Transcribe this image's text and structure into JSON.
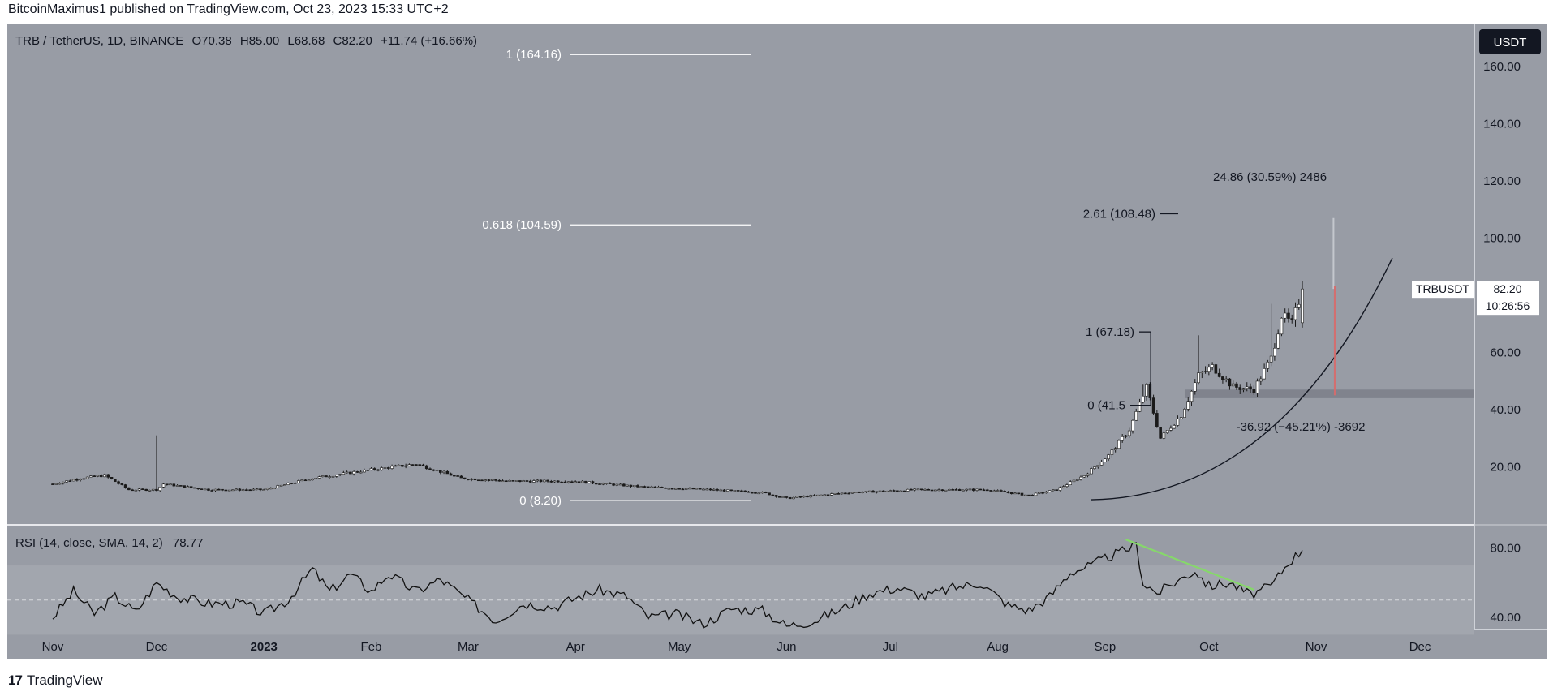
{
  "header": {
    "published_text": "BitcoinMaximus1 published on TradingView.com, Oct 23, 2023 15:33 UTC+2"
  },
  "footer": {
    "logo_glyph": "17",
    "brand": "TradingView"
  },
  "colors": {
    "pane_bg": "#989ca5",
    "candle": "#1a1a1a",
    "rsi_line": "#111111",
    "divergence": "#86d86a",
    "highlight_line": "#d96b6b",
    "fib_line": "#ffffff",
    "zone": "#7b7f88"
  },
  "chart_data": {
    "type": "candlestick",
    "symbol_line": {
      "symbol": "TRB / TetherUS, 1D, BINANCE",
      "open_label": "O",
      "open": "70.38",
      "high_label": "H",
      "high": "85.00",
      "low_label": "L",
      "low": "68.68",
      "close_label": "C",
      "close": "82.20",
      "change": "+11.74 (+16.66%)"
    },
    "currency_badge": "USDT",
    "price_axis": {
      "range": [
        0,
        175
      ],
      "ticks": [
        "160.00",
        "140.00",
        "120.00",
        "100.00",
        "80.00",
        "60.00",
        "40.00",
        "20.00"
      ]
    },
    "time_axis": {
      "labels": [
        "Nov",
        "Dec",
        "2023",
        "Feb",
        "Mar",
        "Apr",
        "May",
        "Jun",
        "Jul",
        "Aug",
        "Sep",
        "Oct",
        "Nov",
        "Dec"
      ],
      "label_day_index": [
        0,
        30,
        61,
        92,
        120,
        151,
        181,
        212,
        242,
        273,
        304,
        334,
        365,
        395
      ],
      "first_day": "2022-11-01"
    },
    "price_series": {
      "name": "TRB/USDT daily close (approx.)",
      "anchors": [
        [
          0,
          14
        ],
        [
          8,
          16
        ],
        [
          15,
          17
        ],
        [
          22,
          12
        ],
        [
          30,
          12
        ],
        [
          32,
          14
        ],
        [
          45,
          12
        ],
        [
          61,
          12
        ],
        [
          75,
          16
        ],
        [
          92,
          19
        ],
        [
          105,
          21
        ],
        [
          118,
          16
        ],
        [
          132,
          15
        ],
        [
          150,
          15
        ],
        [
          170,
          13
        ],
        [
          190,
          12
        ],
        [
          205,
          11
        ],
        [
          212,
          9
        ],
        [
          230,
          11
        ],
        [
          250,
          12
        ],
        [
          270,
          12
        ],
        [
          282,
          10
        ],
        [
          290,
          12
        ],
        [
          298,
          17
        ],
        [
          305,
          24
        ],
        [
          311,
          33
        ],
        [
          316,
          48
        ],
        [
          320,
          30
        ],
        [
          326,
          38
        ],
        [
          331,
          52
        ],
        [
          335,
          55
        ],
        [
          341,
          48
        ],
        [
          347,
          47
        ],
        [
          352,
          58
        ],
        [
          355,
          73
        ],
        [
          358,
          70
        ],
        [
          361,
          82
        ]
      ],
      "spikes": [
        [
          30,
          31
        ],
        [
          315,
          49
        ],
        [
          331,
          66
        ],
        [
          352,
          77
        ]
      ]
    },
    "fib_levels_left": [
      {
        "label": "1 (164.16)",
        "value": 164.16
      },
      {
        "label": "0.618 (104.59)",
        "value": 104.59
      },
      {
        "label": "0 (8.20)",
        "value": 8.2
      }
    ],
    "fib_levels_right": [
      {
        "label": "2.61 (108.48)",
        "value": 108.48
      },
      {
        "label": "1 (67.18)",
        "value": 67.18
      },
      {
        "label": "0 (41.5",
        "value": 41.5
      }
    ],
    "support_zone": {
      "low": 44,
      "high": 47
    },
    "ascending_curve": {
      "from": [
        300,
        8.5
      ],
      "to": [
        387,
        93
      ]
    },
    "measure_up": {
      "text": "24.86 (30.59%) 2486",
      "from_value": 82.2,
      "to_value": 107
    },
    "measure_down": {
      "text": "-36.92 (−45.21%) -3692",
      "from_value": 82.2,
      "to_value": 45
    },
    "last_price_badge": {
      "symbol": "TRBUSDT",
      "price": "82.20",
      "countdown": "10:26:56",
      "value": 82.2
    },
    "rsi": {
      "title": "RSI (14, close, SMA, 14, 2)",
      "value_text": "78.77",
      "value": 78.77,
      "range": [
        33,
        93
      ],
      "band": [
        30,
        70
      ],
      "midline": 50,
      "ticks": [
        "80.00",
        "40.00"
      ],
      "anchors": [
        [
          0,
          40
        ],
        [
          6,
          55
        ],
        [
          12,
          42
        ],
        [
          18,
          52
        ],
        [
          24,
          43
        ],
        [
          30,
          60
        ],
        [
          36,
          52
        ],
        [
          45,
          48
        ],
        [
          55,
          48
        ],
        [
          61,
          42
        ],
        [
          68,
          50
        ],
        [
          75,
          68
        ],
        [
          80,
          55
        ],
        [
          86,
          65
        ],
        [
          92,
          55
        ],
        [
          97,
          65
        ],
        [
          105,
          55
        ],
        [
          112,
          62
        ],
        [
          120,
          50
        ],
        [
          128,
          38
        ],
        [
          136,
          48
        ],
        [
          145,
          46
        ],
        [
          152,
          52
        ],
        [
          158,
          56
        ],
        [
          166,
          52
        ],
        [
          172,
          40
        ],
        [
          180,
          42
        ],
        [
          188,
          36
        ],
        [
          196,
          45
        ],
        [
          205,
          44
        ],
        [
          212,
          35
        ],
        [
          220,
          38
        ],
        [
          228,
          45
        ],
        [
          236,
          54
        ],
        [
          244,
          57
        ],
        [
          252,
          52
        ],
        [
          260,
          57
        ],
        [
          268,
          60
        ],
        [
          276,
          47
        ],
        [
          282,
          44
        ],
        [
          288,
          52
        ],
        [
          294,
          66
        ],
        [
          300,
          70
        ],
        [
          305,
          75
        ],
        [
          309,
          78
        ],
        [
          313,
          82
        ],
        [
          315,
          60
        ],
        [
          319,
          54
        ],
        [
          324,
          60
        ],
        [
          330,
          67
        ],
        [
          334,
          58
        ],
        [
          340,
          60
        ],
        [
          346,
          53
        ],
        [
          352,
          58
        ],
        [
          357,
          72
        ],
        [
          361,
          78.77
        ]
      ],
      "divergence": {
        "from": [
          310,
          85
        ],
        "to": [
          347,
          56
        ]
      }
    }
  }
}
